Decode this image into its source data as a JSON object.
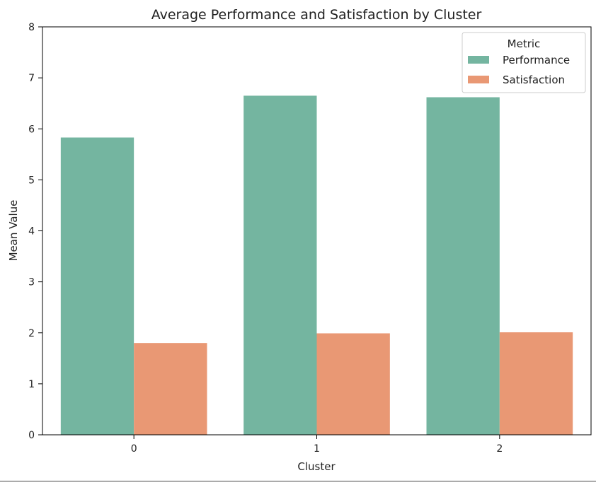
{
  "chart_data": {
    "type": "bar",
    "title": "Average Performance and Satisfaction by Cluster",
    "xlabel": "Cluster",
    "ylabel": "Mean Value",
    "categories": [
      "0",
      "1",
      "2"
    ],
    "series": [
      {
        "name": "Performance",
        "values": [
          5.83,
          6.65,
          6.62
        ],
        "color": "#74b5a0"
      },
      {
        "name": "Satisfaction",
        "values": [
          1.8,
          1.99,
          2.01
        ],
        "color": "#e99874"
      }
    ],
    "ylim": [
      0,
      8
    ],
    "yticks": [
      0,
      1,
      2,
      3,
      4,
      5,
      6,
      7,
      8
    ],
    "grid": false,
    "legend": {
      "title": "Metric",
      "position": "top-right"
    }
  }
}
